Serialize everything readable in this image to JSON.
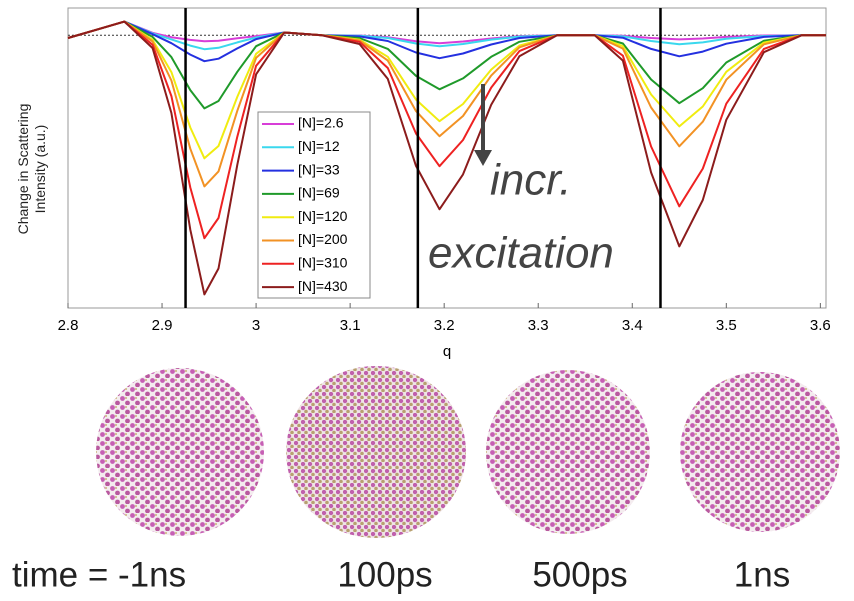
{
  "chart_data": {
    "type": "line",
    "xlabel": "q",
    "ylabel": "Change in Scattering Intensity (a.u.)",
    "xlim": [
      2.8,
      3.606
    ],
    "ylim": [
      -1,
      0.1
    ],
    "xticks": [
      2.8,
      2.9,
      3,
      3.1,
      3.2,
      3.3,
      3.4,
      3.5,
      3.6
    ],
    "baseline": 0,
    "vlines": [
      2.925,
      3.172,
      3.43
    ],
    "annotations": [
      "incr.",
      "excitation"
    ],
    "x": [
      2.8,
      2.83,
      2.86,
      2.89,
      2.91,
      2.93,
      2.945,
      2.96,
      2.98,
      3.0,
      3.03,
      3.07,
      3.11,
      3.14,
      3.17,
      3.195,
      3.22,
      3.25,
      3.28,
      3.32,
      3.36,
      3.39,
      3.42,
      3.45,
      3.475,
      3.5,
      3.54,
      3.58,
      3.606
    ],
    "series": [
      {
        "name": "[N]=2.6",
        "color": "#d83ed8",
        "values": [
          -0.01,
          0.02,
          0.05,
          0.009,
          -0.007,
          -0.017,
          -0.022,
          -0.02,
          -0.011,
          -0.003,
          0.01,
          0,
          -0.001,
          -0.007,
          -0.022,
          -0.029,
          -0.023,
          -0.012,
          -0.003,
          0,
          0,
          -0.002,
          -0.01,
          -0.015,
          -0.012,
          -0.006,
          -0.001,
          0,
          0
        ]
      },
      {
        "name": "[N]=12",
        "color": "#3ad8ee",
        "values": [
          -0.01,
          0.02,
          0.05,
          0.007,
          -0.015,
          -0.038,
          -0.051,
          -0.046,
          -0.026,
          -0.008,
          0.01,
          0,
          -0.002,
          -0.01,
          -0.03,
          -0.04,
          -0.032,
          -0.016,
          -0.005,
          0,
          0,
          -0.004,
          -0.021,
          -0.033,
          -0.026,
          -0.013,
          -0.003,
          0,
          0
        ]
      },
      {
        "name": "[N]=33",
        "color": "#2430e0",
        "values": [
          -0.01,
          0.02,
          0.05,
          0.004,
          -0.029,
          -0.071,
          -0.095,
          -0.086,
          -0.048,
          -0.014,
          0.01,
          0,
          -0.004,
          -0.021,
          -0.063,
          -0.084,
          -0.067,
          -0.034,
          -0.01,
          0,
          0,
          -0.009,
          -0.05,
          -0.077,
          -0.06,
          -0.031,
          -0.006,
          0,
          0
        ]
      },
      {
        "name": "[N]=69",
        "color": "#1f9a2a",
        "values": [
          -0.01,
          0.02,
          0.05,
          -0.006,
          -0.08,
          -0.201,
          -0.268,
          -0.241,
          -0.134,
          -0.04,
          0.01,
          0,
          -0.01,
          -0.05,
          -0.149,
          -0.198,
          -0.158,
          -0.079,
          -0.024,
          0,
          0,
          -0.03,
          -0.162,
          -0.249,
          -0.194,
          -0.1,
          -0.02,
          0,
          0
        ]
      },
      {
        "name": "[N]=120",
        "color": "#f0ec10",
        "values": [
          -0.01,
          0.02,
          0.05,
          -0.017,
          -0.135,
          -0.338,
          -0.451,
          -0.406,
          -0.226,
          -0.068,
          0.01,
          0,
          -0.016,
          -0.079,
          -0.236,
          -0.315,
          -0.252,
          -0.126,
          -0.038,
          0,
          0,
          -0.04,
          -0.217,
          -0.334,
          -0.261,
          -0.134,
          -0.027,
          0,
          0
        ]
      },
      {
        "name": "[N]=200",
        "color": "#f29224",
        "values": [
          -0.01,
          0.02,
          0.05,
          -0.023,
          -0.166,
          -0.416,
          -0.554,
          -0.499,
          -0.277,
          -0.083,
          0.01,
          0,
          -0.019,
          -0.093,
          -0.278,
          -0.37,
          -0.296,
          -0.148,
          -0.044,
          0,
          0,
          -0.049,
          -0.265,
          -0.407,
          -0.317,
          -0.163,
          -0.033,
          0,
          0
        ]
      },
      {
        "name": "[N]=310",
        "color": "#ee2222",
        "values": [
          -0.01,
          0.02,
          0.05,
          -0.035,
          -0.223,
          -0.558,
          -0.744,
          -0.67,
          -0.372,
          -0.112,
          0.01,
          0,
          -0.024,
          -0.12,
          -0.36,
          -0.48,
          -0.384,
          -0.192,
          -0.058,
          0,
          0,
          -0.075,
          -0.408,
          -0.627,
          -0.489,
          -0.251,
          -0.05,
          0,
          0
        ]
      },
      {
        "name": "[N]=430",
        "color": "#8c1c1c",
        "values": [
          -0.01,
          0.02,
          0.05,
          -0.047,
          -0.285,
          -0.713,
          -0.95,
          -0.855,
          -0.475,
          -0.143,
          0.01,
          0,
          -0.032,
          -0.16,
          -0.479,
          -0.638,
          -0.51,
          -0.255,
          -0.077,
          0,
          0,
          -0.093,
          -0.503,
          -0.774,
          -0.604,
          -0.31,
          -0.062,
          0,
          0
        ]
      }
    ]
  },
  "snapshots": [
    {
      "label": "time = -1ns"
    },
    {
      "label": "100ps"
    },
    {
      "label": "500ps"
    },
    {
      "label": "1ns"
    }
  ]
}
